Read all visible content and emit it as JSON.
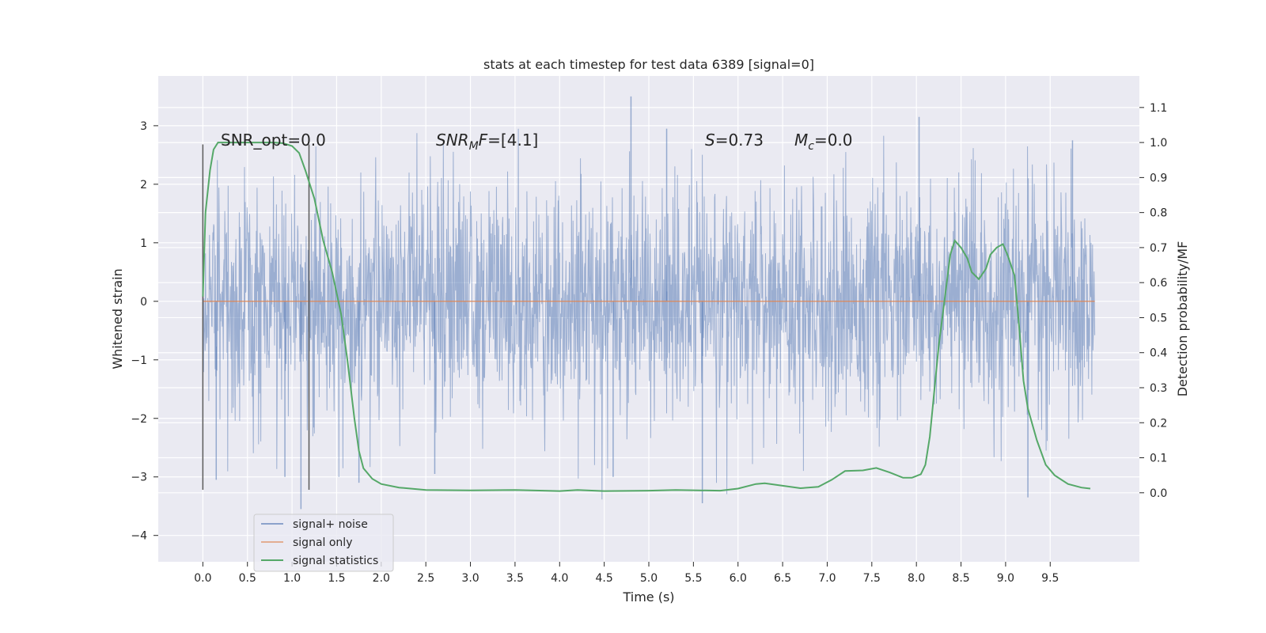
{
  "chart_data": {
    "type": "line",
    "title": "stats at each timestep for test data 6389 [signal=0]",
    "xlabel": "Time (s)",
    "ylabel_left": "Whitened strain",
    "ylabel_right": "Detection probability/MF",
    "xlim": [
      -0.5,
      10.5
    ],
    "ylim_left": [
      -4.45,
      3.85
    ],
    "ylim_right": [
      -0.197,
      1.19
    ],
    "x_ticks": [
      "0.0",
      "0.5",
      "1.0",
      "1.5",
      "2.0",
      "2.5",
      "3.0",
      "3.5",
      "4.0",
      "4.5",
      "5.0",
      "5.5",
      "6.0",
      "6.5",
      "7.0",
      "7.5",
      "8.0",
      "8.5",
      "9.0",
      "9.5"
    ],
    "y_left_ticks": [
      "3",
      "2",
      "1",
      "0",
      "−1",
      "−2",
      "−3",
      "−4"
    ],
    "y_right_ticks": [
      "1.1",
      "1.0",
      "0.9",
      "0.8",
      "0.7",
      "0.6",
      "0.5",
      "0.4",
      "0.3",
      "0.2",
      "0.1",
      "0.0"
    ],
    "grid": true,
    "legend_position": "lower-left",
    "annotations": {
      "snr_opt": "SNR_opt=0.0",
      "snr_mf_italic": "SNR",
      "snr_mf_sub": "M",
      "snr_mf_italic2": "F",
      "snr_mf_value": "=[4.1]",
      "s_italic": "S",
      "s_value": "=0.73",
      "mc_italic": "M",
      "mc_sub": "c",
      "mc_value": "=0.0"
    },
    "vertical_markers": [
      0.0,
      1.19
    ],
    "series": [
      {
        "name": "signal+ noise",
        "color": "#4c72b0",
        "axis": "left",
        "x_range": [
          0.0,
          10.0
        ],
        "envelope_typical": [
          -1.5,
          1.5
        ],
        "envelope_extreme": [
          -3.6,
          3.5
        ],
        "spikes": [
          {
            "x": 4.8,
            "y": 3.5
          },
          {
            "x": 8.03,
            "y": 3.15
          },
          {
            "x": 5.2,
            "y": 2.95
          },
          {
            "x": 9.75,
            "y": 2.75
          },
          {
            "x": 1.1,
            "y": -3.55
          },
          {
            "x": 5.6,
            "y": -3.45
          },
          {
            "x": 9.25,
            "y": -3.35
          },
          {
            "x": 0.15,
            "y": -3.05
          },
          {
            "x": 1.75,
            "y": -3.1
          },
          {
            "x": 2.6,
            "y": -2.95
          },
          {
            "x": 4.6,
            "y": -3.0
          },
          {
            "x": 0.92,
            "y": -3.0
          }
        ]
      },
      {
        "name": "signal only",
        "color": "#dd8452",
        "axis": "left",
        "x": [
          0.0,
          10.0
        ],
        "y": [
          0.0,
          0.0
        ]
      },
      {
        "name": "signal statistics",
        "color": "#55a868",
        "axis": "right",
        "x": [
          0.0,
          0.03,
          0.08,
          0.12,
          0.17,
          0.25,
          0.4,
          0.6,
          0.8,
          0.9,
          1.0,
          1.08,
          1.15,
          1.25,
          1.35,
          1.45,
          1.55,
          1.62,
          1.7,
          1.75,
          1.8,
          1.9,
          2.0,
          2.2,
          2.5,
          3.0,
          3.5,
          4.0,
          4.2,
          4.5,
          5.0,
          5.3,
          5.8,
          6.0,
          6.2,
          6.3,
          6.5,
          6.7,
          6.9,
          7.05,
          7.2,
          7.4,
          7.55,
          7.7,
          7.85,
          7.95,
          8.05,
          8.1,
          8.15,
          8.25,
          8.32,
          8.38,
          8.43,
          8.5,
          8.57,
          8.62,
          8.7,
          8.78,
          8.83,
          8.9,
          8.97,
          9.02,
          9.1,
          9.15,
          9.2,
          9.25,
          9.35,
          9.45,
          9.55,
          9.7,
          9.85,
          9.95
        ],
        "y": [
          0.56,
          0.8,
          0.92,
          0.98,
          1.0,
          1.0,
          1.0,
          1.0,
          1.0,
          0.998,
          0.99,
          0.97,
          0.92,
          0.84,
          0.72,
          0.63,
          0.51,
          0.38,
          0.21,
          0.12,
          0.07,
          0.04,
          0.025,
          0.015,
          0.008,
          0.007,
          0.008,
          0.005,
          0.008,
          0.005,
          0.006,
          0.008,
          0.006,
          0.012,
          0.025,
          0.027,
          0.02,
          0.013,
          0.017,
          0.037,
          0.062,
          0.064,
          0.071,
          0.058,
          0.043,
          0.043,
          0.053,
          0.08,
          0.16,
          0.42,
          0.56,
          0.68,
          0.72,
          0.7,
          0.67,
          0.63,
          0.61,
          0.64,
          0.68,
          0.7,
          0.71,
          0.68,
          0.62,
          0.48,
          0.32,
          0.24,
          0.15,
          0.08,
          0.05,
          0.025,
          0.015,
          0.012
        ]
      }
    ]
  },
  "colors": {
    "plot_bg": "#eaeaf2",
    "grid": "#ffffff",
    "noise": "#4c72b0",
    "signal": "#dd8452",
    "stat": "#55a868",
    "marker": "#5a5a5a"
  }
}
